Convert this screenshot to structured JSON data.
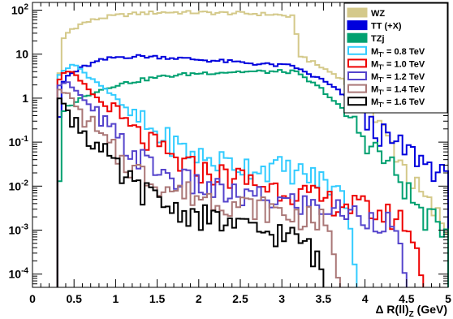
{
  "chart_data": {
    "type": "histogram",
    "xlabel": "Δ R(ll)_Z (GeV)",
    "xlabel_parts": {
      "prefix": "Δ R(ll)",
      "sub": "Z",
      "suffix": " (GeV)"
    },
    "xlim": [
      0,
      5
    ],
    "ylim": [
      5e-05,
      150
    ],
    "yscale": "log",
    "x_ticks": [
      "0",
      "0.5",
      "1",
      "1.5",
      "2",
      "2.5",
      "3",
      "3.5",
      "4",
      "4.5",
      "5"
    ],
    "y_ticks": [
      {
        "value": 100,
        "base": "10",
        "exp": "2"
      },
      {
        "value": 10,
        "label": "10"
      },
      {
        "value": 1,
        "label": "1"
      },
      {
        "value": 0.1,
        "base": "10",
        "exp": "-1"
      },
      {
        "value": 0.01,
        "base": "10",
        "exp": "-2"
      },
      {
        "value": 0.001,
        "base": "10",
        "exp": "-3"
      },
      {
        "value": 0.0001,
        "base": "10",
        "exp": "-4"
      }
    ],
    "grid": false,
    "legend_position": "top-right",
    "series": [
      {
        "name": "WZ",
        "color": "#d4c98a",
        "style": "filled-legend",
        "points": [
          [
            0.3,
            0.003
          ],
          [
            0.32,
            2.5
          ],
          [
            0.35,
            20
          ],
          [
            0.45,
            35
          ],
          [
            0.6,
            50
          ],
          [
            0.8,
            65
          ],
          [
            1.0,
            75
          ],
          [
            1.3,
            85
          ],
          [
            1.6,
            90
          ],
          [
            2.0,
            88
          ],
          [
            2.5,
            85
          ],
          [
            2.9,
            80
          ],
          [
            3.15,
            70
          ],
          [
            3.2,
            10
          ],
          [
            3.4,
            6
          ],
          [
            3.7,
            3
          ],
          [
            4.0,
            0.8
          ],
          [
            4.2,
            0.2
          ],
          [
            4.4,
            0.05
          ],
          [
            4.6,
            0.01
          ],
          [
            4.8,
            0.003
          ],
          [
            5.0,
            0.001
          ]
        ]
      },
      {
        "name": "TT (+X)",
        "color": "#0000dd",
        "style": "filled-legend",
        "points": [
          [
            0.3,
            0.0002
          ],
          [
            0.33,
            1.5
          ],
          [
            0.4,
            3
          ],
          [
            0.6,
            5
          ],
          [
            0.8,
            7
          ],
          [
            1.0,
            8.5
          ],
          [
            1.3,
            9
          ],
          [
            1.6,
            8.5
          ],
          [
            2.0,
            7.5
          ],
          [
            2.5,
            6.5
          ],
          [
            3.0,
            5.5
          ],
          [
            3.15,
            5.5
          ],
          [
            3.2,
            4.5
          ],
          [
            3.5,
            2.5
          ],
          [
            3.8,
            1
          ],
          [
            4.0,
            0.3
          ],
          [
            4.3,
            0.1
          ],
          [
            4.6,
            0.05
          ],
          [
            4.9,
            0.02
          ],
          [
            5.0,
            0.01
          ]
        ]
      },
      {
        "name": "TZj",
        "color": "#00a070",
        "style": "filled-legend",
        "points": [
          [
            0.3,
            0.0002
          ],
          [
            0.35,
            0.5
          ],
          [
            0.5,
            0.8
          ],
          [
            0.7,
            1.3
          ],
          [
            1.0,
            2
          ],
          [
            1.5,
            3
          ],
          [
            2.0,
            3.7
          ],
          [
            2.5,
            4
          ],
          [
            3.0,
            4
          ],
          [
            3.15,
            4
          ],
          [
            3.2,
            3.5
          ],
          [
            3.5,
            1.5
          ],
          [
            3.8,
            0.4
          ],
          [
            4.0,
            0.12
          ],
          [
            4.3,
            0.03
          ],
          [
            4.5,
            0.008
          ],
          [
            4.7,
            0.002
          ],
          [
            5.0,
            0.001
          ]
        ]
      },
      {
        "name": "M_T' = 0.8 TeV",
        "color": "#33ccff",
        "style": "outline",
        "points": [
          [
            0.3,
            0.0001
          ],
          [
            0.32,
            3
          ],
          [
            0.4,
            5
          ],
          [
            0.5,
            6
          ],
          [
            0.6,
            4
          ],
          [
            0.8,
            2.2
          ],
          [
            1.0,
            1.0
          ],
          [
            1.2,
            0.4
          ],
          [
            1.5,
            0.15
          ],
          [
            1.8,
            0.07
          ],
          [
            2.1,
            0.04
          ],
          [
            2.5,
            0.03
          ],
          [
            2.8,
            0.025
          ],
          [
            3.0,
            0.025
          ],
          [
            3.2,
            0.02
          ],
          [
            3.4,
            0.015
          ],
          [
            3.6,
            0.01
          ],
          [
            3.8,
            0.004
          ],
          [
            3.9,
            0.0001
          ]
        ]
      },
      {
        "name": "M_T' = 1.0 TeV",
        "color": "#ee0000",
        "style": "outline",
        "points": [
          [
            0.3,
            0.0001
          ],
          [
            0.32,
            2.5
          ],
          [
            0.4,
            4
          ],
          [
            0.5,
            3.5
          ],
          [
            0.6,
            2.2
          ],
          [
            0.8,
            0.9
          ],
          [
            1.0,
            0.4
          ],
          [
            1.2,
            0.18
          ],
          [
            1.5,
            0.07
          ],
          [
            1.8,
            0.03
          ],
          [
            2.1,
            0.02
          ],
          [
            2.5,
            0.015
          ],
          [
            2.8,
            0.01
          ],
          [
            3.1,
            0.008
          ],
          [
            3.4,
            0.005
          ],
          [
            3.7,
            0.004
          ],
          [
            4.0,
            0.003
          ],
          [
            4.3,
            0.002
          ],
          [
            4.5,
            0.0015
          ],
          [
            4.7,
            0.0001
          ]
        ]
      },
      {
        "name": "M_T' = 1.2 TeV",
        "color": "#5544cc",
        "style": "outline",
        "points": [
          [
            0.3,
            0.0001
          ],
          [
            0.32,
            2
          ],
          [
            0.4,
            2.5
          ],
          [
            0.5,
            1.6
          ],
          [
            0.7,
            0.6
          ],
          [
            0.9,
            0.2
          ],
          [
            1.1,
            0.08
          ],
          [
            1.4,
            0.03
          ],
          [
            1.7,
            0.015
          ],
          [
            2.0,
            0.01
          ],
          [
            2.4,
            0.006
          ],
          [
            2.8,
            0.005
          ],
          [
            3.2,
            0.004
          ],
          [
            3.6,
            0.003
          ],
          [
            4.0,
            0.002
          ],
          [
            4.3,
            0.0015
          ],
          [
            4.5,
            0.0001
          ]
        ]
      },
      {
        "name": "M_T' = 1.4 TeV",
        "color": "#aa7777",
        "style": "outline",
        "points": [
          [
            0.3,
            0.0001
          ],
          [
            0.32,
            1.5
          ],
          [
            0.4,
            1.4
          ],
          [
            0.5,
            0.8
          ],
          [
            0.7,
            0.25
          ],
          [
            0.9,
            0.08
          ],
          [
            1.1,
            0.035
          ],
          [
            1.4,
            0.015
          ],
          [
            1.7,
            0.008
          ],
          [
            2.0,
            0.006
          ],
          [
            2.4,
            0.004
          ],
          [
            2.8,
            0.003
          ],
          [
            3.2,
            0.002
          ],
          [
            3.5,
            0.0015
          ],
          [
            3.7,
            0.0001
          ]
        ]
      },
      {
        "name": "M_T' = 1.6 TeV",
        "color": "#000000",
        "style": "outline",
        "points": [
          [
            0.3,
            0.0001
          ],
          [
            0.32,
            1.0
          ],
          [
            0.4,
            0.6
          ],
          [
            0.5,
            0.35
          ],
          [
            0.7,
            0.12
          ],
          [
            0.9,
            0.04
          ],
          [
            1.1,
            0.015
          ],
          [
            1.4,
            0.006
          ],
          [
            1.7,
            0.003
          ],
          [
            2.0,
            0.002
          ],
          [
            2.3,
            0.0015
          ],
          [
            2.6,
            0.001
          ],
          [
            3.0,
            0.0008
          ],
          [
            3.3,
            0.0005
          ],
          [
            3.5,
            0.0001
          ]
        ]
      }
    ]
  }
}
